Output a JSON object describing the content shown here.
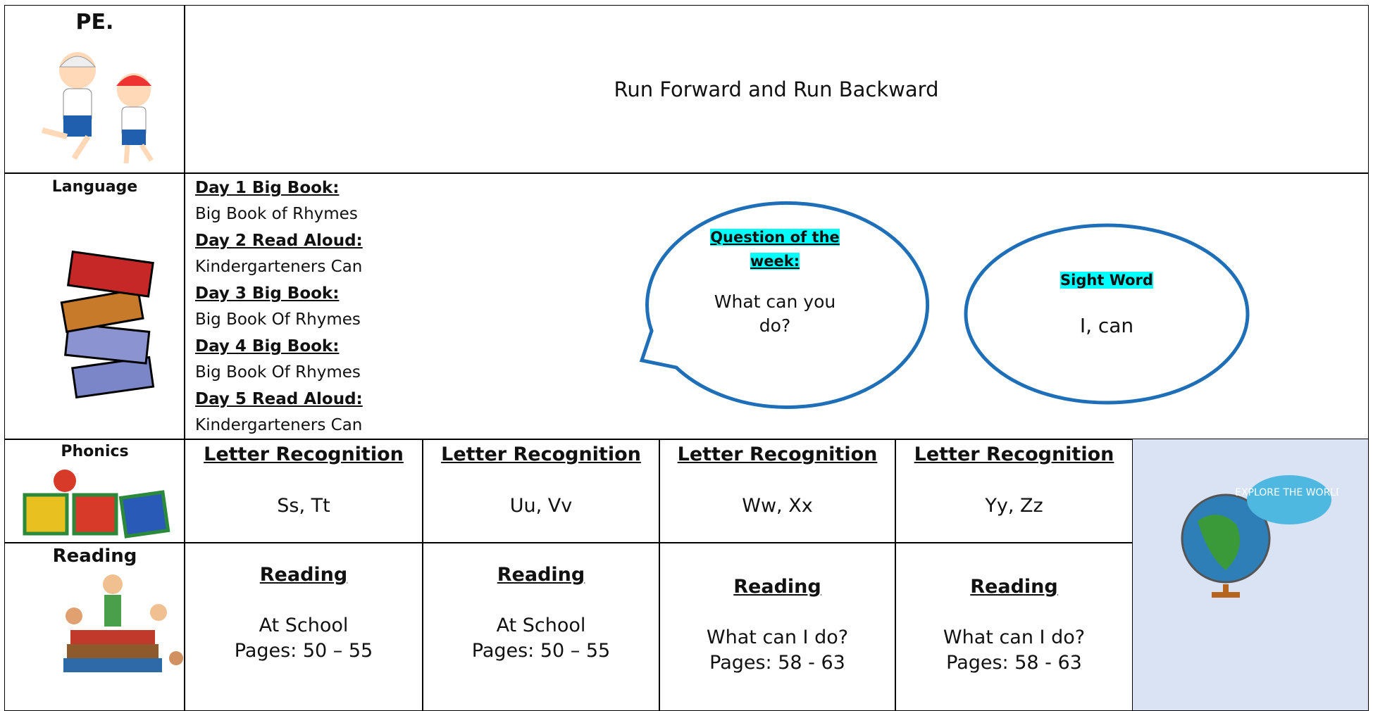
{
  "pe": {
    "label": "PE.",
    "activity": "Run Forward and Run Backward"
  },
  "language": {
    "label": "Language",
    "days": [
      {
        "heading": "Day 1 Big Book:",
        "text": "Big Book of Rhymes"
      },
      {
        "heading": "Day 2 Read Aloud:",
        "text": "Kindergarteners Can"
      },
      {
        "heading": "Day 3 Big Book:",
        "text": "Big Book Of Rhymes"
      },
      {
        "heading": "Day 4 Big Book:",
        "text": "Big Book Of Rhymes"
      },
      {
        "heading": "Day 5 Read Aloud:",
        "text": "Kindergarteners Can"
      }
    ],
    "question": {
      "heading": "Question of the week:",
      "text": "What can you do?"
    },
    "sight_word": {
      "heading": "Sight Word",
      "text": "I, can"
    }
  },
  "phonics": {
    "label": "Phonics",
    "columns": [
      {
        "heading": "Letter Recognition",
        "text": "Ss, Tt"
      },
      {
        "heading": "Letter Recognition",
        "text": "Uu, Vv"
      },
      {
        "heading": "Letter Recognition",
        "text": "Ww, Xx"
      },
      {
        "heading": "Letter Recognition",
        "text": "Yy, Zz"
      }
    ]
  },
  "reading": {
    "label": "Reading",
    "columns": [
      {
        "heading": "Reading",
        "lines": [
          "At School",
          "Pages: 50 – 55"
        ]
      },
      {
        "heading": "Reading",
        "lines": [
          "At School",
          "Pages: 50 – 55"
        ]
      },
      {
        "heading": "Reading",
        "lines": [
          "What can I do?",
          "Pages: 58 - 63"
        ]
      },
      {
        "heading": "Reading",
        "lines": [
          "What can I do?",
          "Pages: 58 - 63"
        ]
      }
    ]
  },
  "badge": "EXPLORE THE WORLD"
}
